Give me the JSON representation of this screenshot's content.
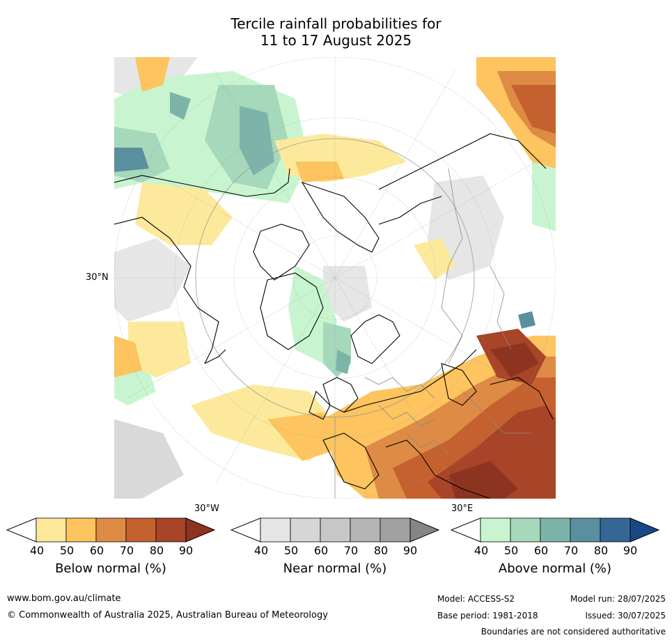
{
  "title_line1": "Tercile rainfall probabilities for",
  "title_line2": "11 to 17 August 2025",
  "map": {
    "lat_label": "30°N",
    "lon_label_left": "30°W",
    "lon_label_right": "30°E"
  },
  "colorbars": [
    {
      "title": "Below normal (%)",
      "ticks": [
        "40",
        "50",
        "60",
        "70",
        "80",
        "90"
      ],
      "colors": [
        "#ffffff",
        "#fde99c",
        "#fdc45f",
        "#dd8b45",
        "#c5612f",
        "#a84427",
        "#8c3420"
      ]
    },
    {
      "title": "Near normal (%)",
      "ticks": [
        "40",
        "50",
        "60",
        "70",
        "80",
        "90"
      ],
      "colors": [
        "#ffffff",
        "#e6e6e6",
        "#d6d6d6",
        "#c7c7c7",
        "#b5b5b5",
        "#a1a1a1",
        "#858585"
      ]
    },
    {
      "title": "Above normal (%)",
      "ticks": [
        "40",
        "50",
        "60",
        "70",
        "80",
        "90"
      ],
      "colors": [
        "#ffffff",
        "#c8f5cf",
        "#a6d8bb",
        "#7db4aa",
        "#5a8fa0",
        "#346796",
        "#174a85"
      ]
    }
  ],
  "footer": {
    "website": "www.bom.gov.au/climate",
    "copyright": "© Commonwealth of Australia 2025, Australian Bureau of Meteorology",
    "model": "Model: ACCESS-S2",
    "base_period": "Base period: 1981-2018",
    "model_run": "Model run: 28/07/2025",
    "issued": "Issued: 30/07/2025",
    "disclaimer": "Boundaries are not considered authoritative"
  }
}
